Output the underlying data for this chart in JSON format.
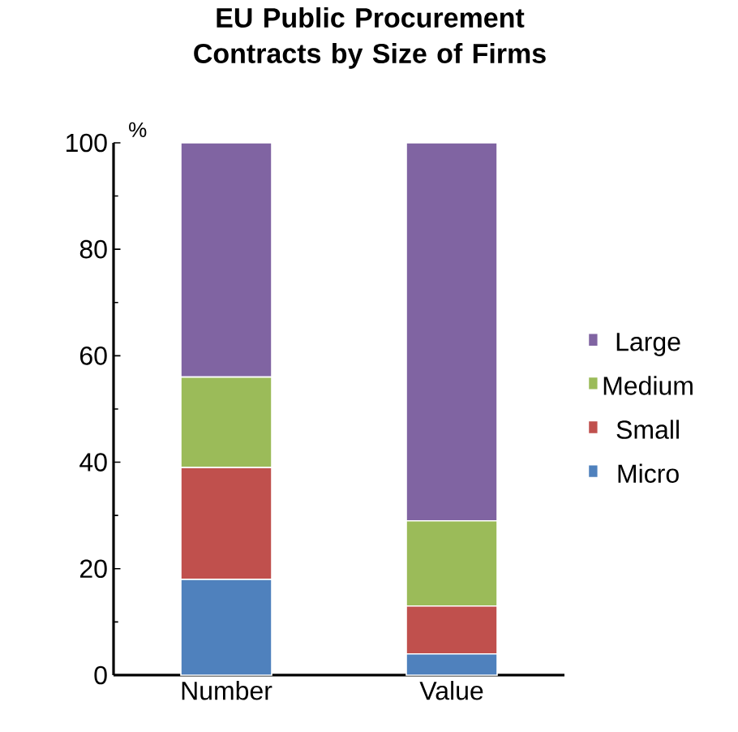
{
  "chart_data": {
    "type": "bar",
    "title": "EU Public Procurement Contracts by Size of Firms",
    "ylabel": "%",
    "categories": [
      "Number",
      "Value"
    ],
    "stacked": true,
    "ylim": [
      0,
      100
    ],
    "yticks": [
      0,
      20,
      40,
      60,
      80,
      100
    ],
    "legend": "right",
    "grid": false,
    "series": [
      {
        "name": "Micro",
        "color": "#4f81bd",
        "values": [
          18,
          4
        ]
      },
      {
        "name": "Small",
        "color": "#c0504d",
        "values": [
          21,
          9
        ]
      },
      {
        "name": "Medium",
        "color": "#9bbb59",
        "values": [
          17,
          16
        ]
      },
      {
        "name": "Large",
        "color": "#8064a2",
        "values": [
          44,
          71
        ]
      }
    ]
  }
}
